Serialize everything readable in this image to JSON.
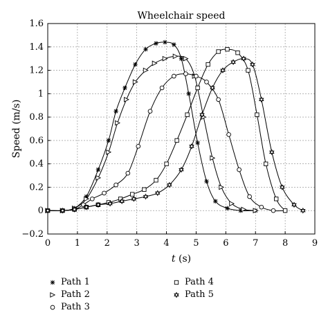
{
  "chart_data": {
    "type": "line",
    "title": "Wheelchair speed",
    "xlabel_var": "t",
    "xlabel_unit": " (s)",
    "ylabel": "Speed (m/s)",
    "xlim": [
      0,
      9
    ],
    "ylim": [
      -0.2,
      1.6
    ],
    "xticks": [
      "0",
      "1",
      "2",
      "3",
      "4",
      "5",
      "6",
      "7",
      "8",
      "9"
    ],
    "yticks": [
      "−0.2",
      "0",
      "0.2",
      "0.4",
      "0.6",
      "0.8",
      "1",
      "1.2",
      "1.4",
      "1.6"
    ],
    "grid": true,
    "legend_position": "bottom",
    "series": [
      {
        "name": "Path 1",
        "marker": "asterisk",
        "x": [
          0,
          0.5,
          0.9,
          1.3,
          1.7,
          2.05,
          2.3,
          2.6,
          2.95,
          3.3,
          3.65,
          3.95,
          4.25,
          4.5,
          4.75,
          5.05,
          5.35,
          5.65,
          6.05,
          6.5,
          7.0
        ],
        "y": [
          0,
          0,
          0.02,
          0.12,
          0.35,
          0.6,
          0.85,
          1.05,
          1.25,
          1.38,
          1.43,
          1.44,
          1.42,
          1.3,
          1.0,
          0.58,
          0.25,
          0.08,
          0.02,
          0,
          0
        ]
      },
      {
        "name": "Path 2",
        "marker": "triangle-right",
        "x": [
          0,
          0.5,
          0.9,
          1.3,
          1.7,
          2.05,
          2.35,
          2.65,
          2.95,
          3.3,
          3.6,
          3.95,
          4.3,
          4.65,
          4.95,
          5.25,
          5.55,
          5.85,
          6.2,
          6.6,
          7.0
        ],
        "y": [
          0,
          0,
          0.02,
          0.1,
          0.28,
          0.5,
          0.75,
          0.95,
          1.1,
          1.2,
          1.26,
          1.3,
          1.32,
          1.3,
          1.15,
          0.8,
          0.45,
          0.2,
          0.06,
          0.01,
          0
        ]
      },
      {
        "name": "Path 3",
        "marker": "circle",
        "x": [
          0,
          0.5,
          0.9,
          1.2,
          1.5,
          1.9,
          2.3,
          2.7,
          3.05,
          3.45,
          3.85,
          4.25,
          4.65,
          5.0,
          5.35,
          5.75,
          6.1,
          6.45,
          6.8,
          7.2,
          7.6,
          8.0
        ],
        "y": [
          0,
          0,
          0.01,
          0.05,
          0.1,
          0.15,
          0.22,
          0.32,
          0.55,
          0.85,
          1.05,
          1.15,
          1.17,
          1.15,
          1.1,
          0.95,
          0.65,
          0.35,
          0.12,
          0.03,
          0,
          0
        ]
      },
      {
        "name": "Path 4",
        "marker": "square",
        "x": [
          0,
          0.5,
          0.9,
          1.3,
          1.7,
          2.05,
          2.45,
          2.85,
          3.25,
          3.65,
          4.0,
          4.35,
          4.7,
          5.05,
          5.4,
          5.75,
          6.05,
          6.4,
          6.75,
          7.05,
          7.35,
          7.7,
          8.0
        ],
        "y": [
          0,
          0,
          0.01,
          0.03,
          0.05,
          0.07,
          0.1,
          0.14,
          0.18,
          0.26,
          0.4,
          0.6,
          0.82,
          1.05,
          1.25,
          1.36,
          1.38,
          1.35,
          1.2,
          0.82,
          0.4,
          0.1,
          0
        ]
      },
      {
        "name": "Path 5",
        "marker": "star",
        "x": [
          0,
          0.5,
          0.9,
          1.3,
          1.7,
          2.1,
          2.5,
          2.9,
          3.3,
          3.7,
          4.1,
          4.5,
          4.85,
          5.2,
          5.55,
          5.9,
          6.25,
          6.6,
          6.9,
          7.2,
          7.55,
          7.9,
          8.3,
          8.6
        ],
        "y": [
          0,
          0,
          0.01,
          0.03,
          0.05,
          0.06,
          0.08,
          0.1,
          0.12,
          0.15,
          0.22,
          0.35,
          0.55,
          0.82,
          1.05,
          1.2,
          1.27,
          1.3,
          1.25,
          0.95,
          0.5,
          0.2,
          0.05,
          0
        ]
      }
    ]
  }
}
